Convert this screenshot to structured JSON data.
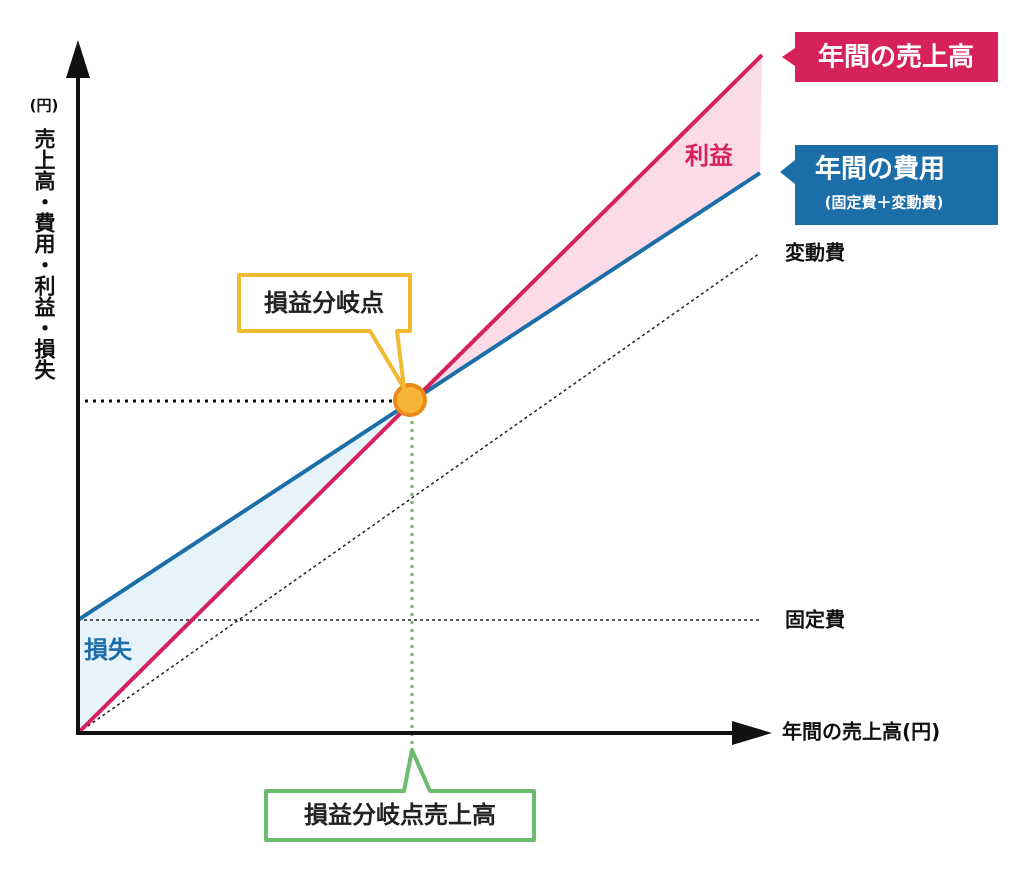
{
  "axes": {
    "y_unit": "(円)",
    "y_label": "売上高・費用・利益・損失",
    "x_label": "年間の売上高(円)"
  },
  "labels": {
    "sales": "年間の売上高",
    "cost": "年間の費用",
    "cost_note": "(固定費＋変動費)",
    "variable_cost": "変動費",
    "fixed_cost": "固定費",
    "profit": "利益",
    "loss": "損失",
    "break_even_point": "損益分岐点",
    "break_even_sales": "損益分岐点売上高"
  }
}
